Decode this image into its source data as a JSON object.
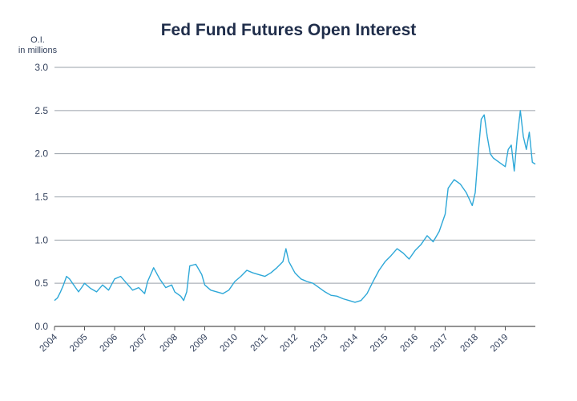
{
  "chart_data": {
    "type": "line",
    "title": "Fed Fund Futures Open Interest",
    "ylabel_lines": [
      "O.I.",
      "in millions"
    ],
    "xlabel": "",
    "ylim": [
      0,
      3.0
    ],
    "y_ticks": [
      "0.0",
      "0.5",
      "1.0",
      "1.5",
      "2.0",
      "2.5",
      "3.0"
    ],
    "x_ticks": [
      "2004",
      "2005",
      "2006",
      "2007",
      "2008",
      "2009",
      "2010",
      "2011",
      "2012",
      "2013",
      "2014",
      "2015",
      "2016",
      "2017",
      "2018",
      "2019"
    ],
    "xlim": [
      2004.0,
      2020.0
    ],
    "grid": true,
    "line_color": "#2ea8d8",
    "grid_color": "#9aa1aa",
    "series": [
      {
        "x": [
          2004.0,
          2004.1,
          2004.2,
          2004.3,
          2004.4,
          2004.5,
          2004.6,
          2004.7,
          2004.8,
          2004.9,
          2005.0,
          2005.2,
          2005.4,
          2005.6,
          2005.8,
          2006.0,
          2006.2,
          2006.4,
          2006.6,
          2006.8,
          2007.0,
          2007.1,
          2007.3,
          2007.5,
          2007.7,
          2007.9,
          2008.0,
          2008.2,
          2008.3,
          2008.4,
          2008.5,
          2008.7,
          2008.9,
          2009.0,
          2009.2,
          2009.4,
          2009.6,
          2009.8,
          2010.0,
          2010.2,
          2010.4,
          2010.6,
          2010.8,
          2011.0,
          2011.2,
          2011.4,
          2011.6,
          2011.7,
          2011.8,
          2012.0,
          2012.2,
          2012.4,
          2012.6,
          2012.8,
          2013.0,
          2013.2,
          2013.4,
          2013.6,
          2013.8,
          2014.0,
          2014.2,
          2014.4,
          2014.6,
          2014.8,
          2015.0,
          2015.2,
          2015.4,
          2015.6,
          2015.8,
          2016.0,
          2016.2,
          2016.4,
          2016.6,
          2016.8,
          2017.0,
          2017.1,
          2017.3,
          2017.5,
          2017.7,
          2017.9,
          2018.0,
          2018.1,
          2018.2,
          2018.3,
          2018.4,
          2018.5,
          2018.6,
          2018.8,
          2019.0,
          2019.1,
          2019.2,
          2019.3,
          2019.4,
          2019.5,
          2019.6,
          2019.7,
          2019.8,
          2019.9,
          2020.0
        ],
        "values": [
          0.3,
          0.33,
          0.4,
          0.48,
          0.58,
          0.55,
          0.5,
          0.45,
          0.4,
          0.45,
          0.5,
          0.44,
          0.4,
          0.48,
          0.42,
          0.55,
          0.58,
          0.5,
          0.42,
          0.45,
          0.38,
          0.52,
          0.68,
          0.55,
          0.45,
          0.48,
          0.4,
          0.35,
          0.3,
          0.4,
          0.7,
          0.72,
          0.6,
          0.48,
          0.42,
          0.4,
          0.38,
          0.42,
          0.52,
          0.58,
          0.65,
          0.62,
          0.6,
          0.58,
          0.62,
          0.68,
          0.75,
          0.9,
          0.75,
          0.62,
          0.55,
          0.52,
          0.5,
          0.45,
          0.4,
          0.36,
          0.35,
          0.32,
          0.3,
          0.28,
          0.3,
          0.38,
          0.52,
          0.65,
          0.75,
          0.82,
          0.9,
          0.85,
          0.78,
          0.88,
          0.95,
          1.05,
          0.98,
          1.1,
          1.3,
          1.6,
          1.7,
          1.65,
          1.55,
          1.4,
          1.55,
          2.0,
          2.4,
          2.45,
          2.2,
          2.0,
          1.95,
          1.9,
          1.85,
          2.05,
          2.1,
          1.8,
          2.2,
          2.5,
          2.2,
          2.05,
          2.25,
          1.9,
          1.88
        ]
      }
    ]
  }
}
